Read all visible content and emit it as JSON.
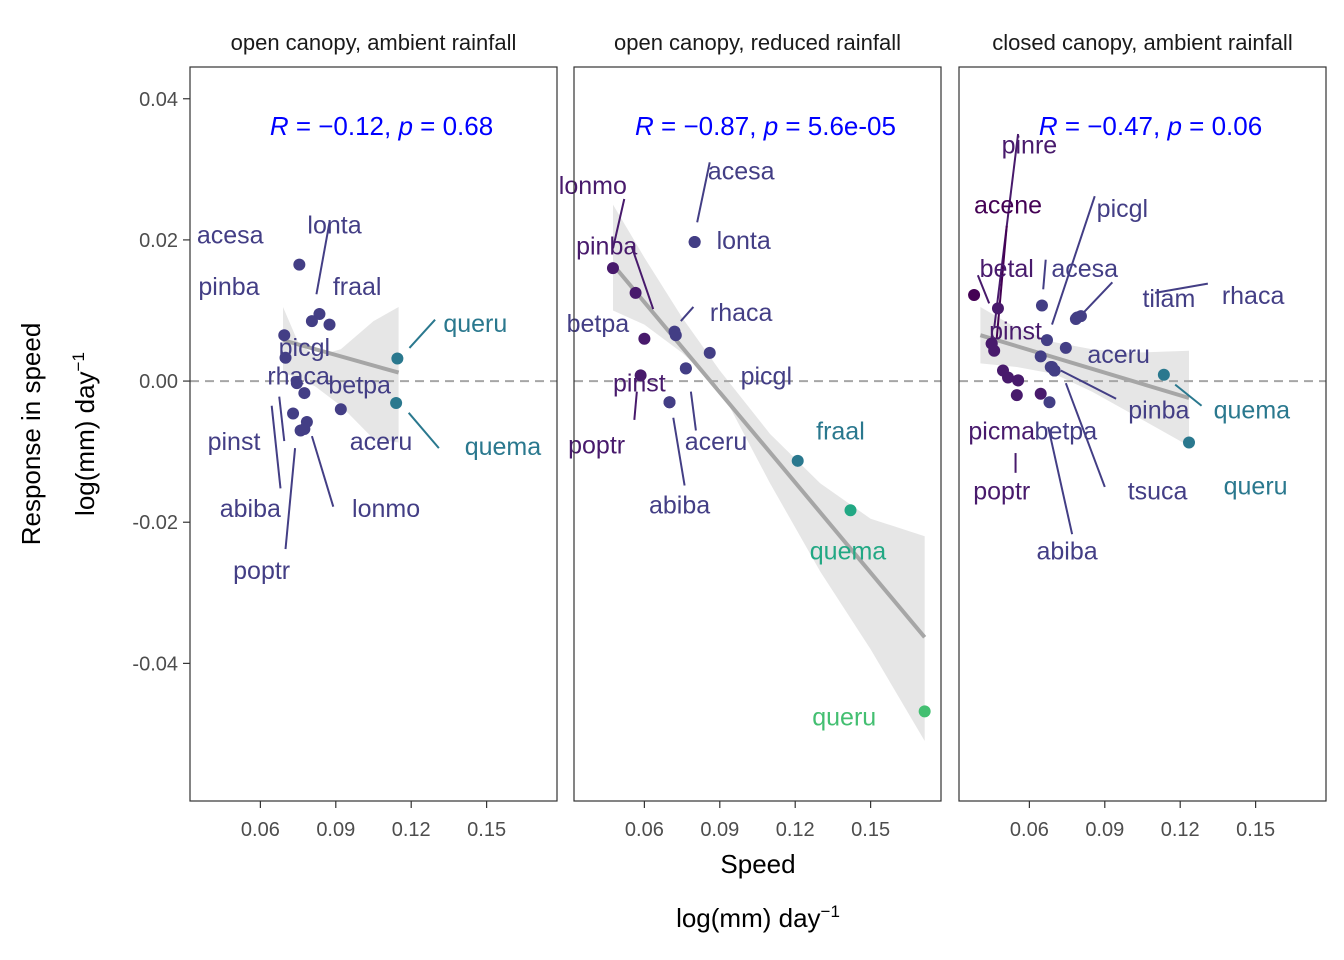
{
  "chart_data": {
    "type": "scatter",
    "y_axis": {
      "title_line1": "Response in speed",
      "title_line2_base": "log(mm) day",
      "title_line2_sup": "−1",
      "ylim": [
        -0.0595,
        0.0445
      ],
      "ticks": [
        0.04,
        0.02,
        0.0,
        -0.02,
        -0.04
      ],
      "tick_labels": [
        "0.04",
        "0.02",
        "0.00",
        "-0.02",
        "-0.04"
      ]
    },
    "x_axis": {
      "title": "Speed",
      "unit_base": "log(mm) day",
      "unit_sup": "−1",
      "xlim": [
        0.032,
        0.178
      ],
      "ticks": [
        0.06,
        0.09,
        0.12,
        0.15
      ],
      "tick_labels": [
        "0.06",
        "0.09",
        "0.12",
        "0.15"
      ]
    },
    "reference_line_y": 0,
    "grid": false,
    "panels": [
      {
        "strip": "open canopy, ambient rainfall",
        "stat": {
          "r": "−0.12",
          "p": "0.68"
        },
        "fit": {
          "x0": 0.069,
          "x1": 0.115,
          "y0": 0.0058,
          "y1": 0.0012,
          "ribbon_x": [
            0.069,
            0.075,
            0.082,
            0.092,
            0.105,
            0.115
          ],
          "ribbon_upper": [
            0.0105,
            0.0055,
            0.0035,
            0.0045,
            0.0085,
            0.0105
          ],
          "ribbon_lower": [
            0.0011,
            0.0005,
            -0.0008,
            -0.0035,
            -0.0082,
            -0.0087
          ]
        },
        "points": [
          {
            "name": "acesa",
            "x": 0.0755,
            "y": 0.0165,
            "color": "#433e85",
            "lx": 0.048,
            "ly": 0.0208,
            "anchor": "middle"
          },
          {
            "name": "lonta",
            "x": 0.0835,
            "y": 0.0095,
            "color": "#433e85",
            "lx": 0.0895,
            "ly": 0.0222,
            "anchor": "middle",
            "seg": [
              0.0875,
              0.0225,
              0.0823,
              0.0123
            ]
          },
          {
            "name": "fraal",
            "x": 0.0805,
            "y": 0.0085,
            "color": "#433e85",
            "lx": 0.0985,
            "ly": 0.0135,
            "anchor": "middle"
          },
          {
            "name": "",
            "x": 0.0875,
            "y": 0.008,
            "color": "#433e85"
          },
          {
            "name": "pinba",
            "x": 0.0695,
            "y": 0.0065,
            "color": "#433e85",
            "lx": 0.0475,
            "ly": 0.0135,
            "anchor": "middle"
          },
          {
            "name": "picgl",
            "x": 0.07,
            "y": 0.0033,
            "color": "#433e85",
            "lx": 0.0775,
            "ly": 0.0048,
            "anchor": "middle"
          },
          {
            "name": "rhaca",
            "x": 0.0745,
            "y": -0.0003,
            "color": "#433e85",
            "lx": 0.0752,
            "ly": 0.0008,
            "anchor": "middle"
          },
          {
            "name": "betpa",
            "x": 0.0775,
            "y": -0.0017,
            "color": "#433e85",
            "lx": 0.0995,
            "ly": -0.0005,
            "anchor": "middle"
          },
          {
            "name": "aceru",
            "x": 0.092,
            "y": -0.004,
            "color": "#433e85",
            "lx": 0.108,
            "ly": -0.0085,
            "anchor": "middle"
          },
          {
            "name": "pinst",
            "x": 0.073,
            "y": -0.0046,
            "color": "#433e85",
            "lx": 0.0495,
            "ly": -0.0085,
            "anchor": "middle",
            "seg": [
              0.0675,
              -0.0022,
              0.0695,
              -0.0085
            ]
          },
          {
            "name": "lonmo",
            "x": 0.0785,
            "y": -0.0058,
            "color": "#433e85",
            "lx": 0.11,
            "ly": -0.018,
            "anchor": "middle",
            "seg": [
              0.0805,
              -0.0078,
              0.089,
              -0.0178
            ]
          },
          {
            "name": "abiba",
            "x": 0.076,
            "y": -0.007,
            "color": "#433e85",
            "lx": 0.056,
            "ly": -0.018,
            "anchor": "middle",
            "seg": [
              0.0645,
              -0.0035,
              0.068,
              -0.0152
            ]
          },
          {
            "name": "poptr",
            "x": 0.0775,
            "y": -0.0068,
            "color": "#433e85",
            "lx": 0.0605,
            "ly": -0.0268,
            "anchor": "middle",
            "seg": [
              0.0738,
              -0.0095,
              0.07,
              -0.0238
            ]
          },
          {
            "name": "queru",
            "x": 0.1145,
            "y": 0.0032,
            "color": "#2a788e",
            "lx": 0.1455,
            "ly": 0.0082,
            "anchor": "middle",
            "seg": [
              0.1193,
              0.0047,
              0.1295,
              0.0087
            ]
          },
          {
            "name": "quema",
            "x": 0.114,
            "y": -0.0031,
            "color": "#2a788e",
            "lx": 0.1565,
            "ly": -0.0092,
            "anchor": "middle",
            "seg": [
              0.119,
              -0.0045,
              0.131,
              -0.0095
            ]
          }
        ]
      },
      {
        "strip": "open canopy, reduced rainfall",
        "stat": {
          "r": "−0.87",
          "p": "5.6e-05"
        },
        "fit": {
          "x0": 0.0475,
          "x1": 0.1715,
          "y0": 0.0165,
          "y1": -0.0363,
          "ribbon_x": [
            0.0475,
            0.06,
            0.075,
            0.09,
            0.11,
            0.13,
            0.15,
            0.1715
          ],
          "ribbon_upper": [
            0.025,
            0.0175,
            0.009,
            0.0015,
            -0.0075,
            -0.0145,
            -0.0195,
            -0.022
          ],
          "ribbon_lower": [
            0.01,
            0.008,
            0.004,
            -0.001,
            -0.0145,
            -0.027,
            -0.038,
            -0.051
          ]
        },
        "points": [
          {
            "name": "lonmo",
            "x": 0.0475,
            "y": 0.016,
            "color": "#481a6c",
            "lx": 0.0395,
            "ly": 0.0278,
            "anchor": "middle",
            "seg": [
              0.0475,
              0.0188,
              0.052,
              0.0258
            ]
          },
          {
            "name": "acesa",
            "x": 0.08,
            "y": 0.0197,
            "color": "#433e85",
            "lx": 0.0985,
            "ly": 0.0298,
            "anchor": "middle",
            "seg": [
              0.081,
              0.0225,
              0.086,
              0.031
            ]
          },
          {
            "name": "lonta",
            "x": 0.08,
            "y": 0.0197,
            "color": "#433e85",
            "lx": 0.0995,
            "ly": 0.02,
            "anchor": "middle"
          },
          {
            "name": "pinba",
            "x": 0.0565,
            "y": 0.0125,
            "color": "#481a6c",
            "lx": 0.045,
            "ly": 0.0192,
            "anchor": "middle",
            "seg": [
              0.0635,
              0.0102,
              0.055,
              0.019
            ]
          },
          {
            "name": "rhaca",
            "x": 0.072,
            "y": 0.007,
            "color": "#433e85",
            "lx": 0.0985,
            "ly": 0.0098,
            "anchor": "middle",
            "seg": [
              0.0745,
              0.0085,
              0.0795,
              0.0105
            ]
          },
          {
            "name": "betpa",
            "x": 0.0725,
            "y": 0.0065,
            "color": "#433e85",
            "lx": 0.0415,
            "ly": 0.0082,
            "anchor": "middle"
          },
          {
            "name": "",
            "x": 0.06,
            "y": 0.006,
            "color": "#481a6c"
          },
          {
            "name": "",
            "x": 0.086,
            "y": 0.004,
            "color": "#433e85"
          },
          {
            "name": "picgl",
            "x": 0.0765,
            "y": 0.0018,
            "color": "#433e85",
            "lx": 0.1085,
            "ly": 0.0008,
            "anchor": "middle"
          },
          {
            "name": "pinst",
            "x": 0.0585,
            "y": 0.0008,
            "color": "#481a6c",
            "lx": 0.058,
            "ly": -0.0002,
            "anchor": "middle"
          },
          {
            "name": "aceru",
            "x": 0.0765,
            "y": 0.0018,
            "color": "#433e85",
            "lx": 0.0885,
            "ly": -0.0085,
            "anchor": "middle",
            "seg": [
              0.0785,
              -0.0015,
              0.0805,
              -0.007
            ]
          },
          {
            "name": "poptr",
            "x": 0.07,
            "y": -0.003,
            "color": "#481a6c",
            "lx": 0.041,
            "ly": -0.009,
            "anchor": "middle",
            "seg": [
              0.057,
              -0.0015,
              0.056,
              -0.0055
            ]
          },
          {
            "name": "abiba",
            "x": 0.07,
            "y": -0.003,
            "color": "#433e85",
            "lx": 0.074,
            "ly": -0.0175,
            "anchor": "middle",
            "seg": [
              0.0715,
              -0.0052,
              0.076,
              -0.0148
            ]
          },
          {
            "name": "fraal",
            "x": 0.121,
            "y": -0.0113,
            "color": "#2a788e",
            "lx": 0.138,
            "ly": -0.007,
            "anchor": "middle"
          },
          {
            "name": "quema",
            "x": 0.142,
            "y": -0.0183,
            "color": "#22a884",
            "lx": 0.141,
            "ly": -0.024,
            "anchor": "middle"
          },
          {
            "name": "queru",
            "x": 0.1715,
            "y": -0.0468,
            "color": "#43bf71",
            "lx": 0.1395,
            "ly": -0.0475,
            "anchor": "middle"
          }
        ]
      },
      {
        "strip": "closed canopy, ambient rainfall",
        "stat": {
          "r": "−0.47",
          "p": "0.06"
        },
        "fit": {
          "x0": 0.0405,
          "x1": 0.1235,
          "y0": 0.0065,
          "y1": -0.0024,
          "ribbon_x": [
            0.0405,
            0.055,
            0.07,
            0.085,
            0.1,
            0.1235
          ],
          "ribbon_upper": [
            0.0105,
            0.0075,
            0.0055,
            0.0045,
            0.004,
            0.0043
          ],
          "ribbon_lower": [
            0.0025,
            0.002,
            0.001,
            -0.0015,
            -0.0045,
            -0.0092
          ]
        },
        "points": [
          {
            "name": "pinre",
            "x": 0.0475,
            "y": 0.0103,
            "color": "#481a6c",
            "lx": 0.06,
            "ly": 0.0335,
            "anchor": "middle",
            "seg": [
              0.046,
              0.0075,
              0.0555,
              0.035
            ]
          },
          {
            "name": "acene",
            "x": 0.038,
            "y": 0.0122,
            "color": "#440154",
            "lx": 0.0515,
            "ly": 0.025,
            "anchor": "middle",
            "seg": [
              0.047,
              0.006,
              0.051,
              0.022
            ]
          },
          {
            "name": "picgl",
            "x": 0.079,
            "y": 0.009,
            "color": "#433e85",
            "lx": 0.097,
            "ly": 0.0245,
            "anchor": "middle",
            "seg": [
              0.069,
              0.008,
              0.086,
              0.0262
            ]
          },
          {
            "name": "betal",
            "x": 0.045,
            "y": 0.0053,
            "color": "#481a6c",
            "lx": 0.051,
            "ly": 0.016,
            "anchor": "middle",
            "seg": [
              0.044,
              0.011,
              0.0395,
              0.015
            ]
          },
          {
            "name": "acesa",
            "x": 0.065,
            "y": 0.0107,
            "color": "#433e85",
            "lx": 0.082,
            "ly": 0.016,
            "anchor": "middle",
            "seg": [
              0.0655,
              0.013,
              0.0665,
              0.0172
            ]
          },
          {
            "name": "tilam",
            "x": 0.0785,
            "y": 0.0088,
            "color": "#433e85",
            "lx": 0.1155,
            "ly": 0.0118,
            "anchor": "middle",
            "seg": [
              0.081,
              0.0095,
              0.093,
              0.014
            ]
          },
          {
            "name": "rhaca",
            "x": 0.0805,
            "y": 0.0092,
            "color": "#433e85",
            "lx": 0.149,
            "ly": 0.0122,
            "anchor": "middle",
            "seg": [
              0.11,
              0.0125,
              0.131,
              0.0138
            ]
          },
          {
            "name": "pinst",
            "x": 0.045,
            "y": 0.0053,
            "color": "#481a6c",
            "lx": 0.0545,
            "ly": 0.0072,
            "anchor": "middle"
          },
          {
            "name": "",
            "x": 0.067,
            "y": 0.0058,
            "color": "#433e85"
          },
          {
            "name": "aceru",
            "x": 0.0745,
            "y": 0.0047,
            "color": "#433e85",
            "lx": 0.0955,
            "ly": 0.0038,
            "anchor": "middle"
          },
          {
            "name": "",
            "x": 0.046,
            "y": 0.0043,
            "color": "#481a6c"
          },
          {
            "name": "",
            "x": 0.0645,
            "y": 0.0035,
            "color": "#433e85"
          },
          {
            "name": "",
            "x": 0.0495,
            "y": 0.0015,
            "color": "#481a6c"
          },
          {
            "name": "",
            "x": 0.0685,
            "y": 0.002,
            "color": "#433e85"
          },
          {
            "name": "",
            "x": 0.07,
            "y": 0.0015,
            "color": "#433e85"
          },
          {
            "name": "",
            "x": 0.0515,
            "y": 0.0005,
            "color": "#481a6c"
          },
          {
            "name": "",
            "x": 0.0555,
            "y": 0.0001,
            "color": "#481a6c"
          },
          {
            "name": "",
            "x": 0.0645,
            "y": -0.0018,
            "color": "#481a6c"
          },
          {
            "name": "quema",
            "x": 0.1135,
            "y": 0.0009,
            "color": "#2a788e",
            "lx": 0.1485,
            "ly": -0.004,
            "anchor": "middle",
            "seg": [
              0.118,
              -0.0005,
              0.1285,
              -0.0035
            ]
          },
          {
            "name": "pinba",
            "x": 0.069,
            "y": 0.002,
            "color": "#433e85",
            "lx": 0.1115,
            "ly": -0.004,
            "anchor": "middle",
            "seg": [
              0.0725,
              0.0015,
              0.0945,
              -0.0025
            ]
          },
          {
            "name": "picma",
            "x": 0.0555,
            "y": 0.0001,
            "color": "#481a6c",
            "lx": 0.049,
            "ly": -0.007,
            "anchor": "middle"
          },
          {
            "name": "betpa",
            "x": 0.07,
            "y": 0.0015,
            "color": "#433e85",
            "lx": 0.0745,
            "ly": -0.007,
            "anchor": "middle"
          },
          {
            "name": "tsuca",
            "x": 0.07,
            "y": 0.0015,
            "color": "#433e85",
            "lx": 0.111,
            "ly": -0.0155,
            "anchor": "middle",
            "seg": [
              0.0745,
              -0.0003,
              0.09,
              -0.015
            ]
          },
          {
            "name": "poptr",
            "x": 0.055,
            "y": -0.002,
            "color": "#481a6c",
            "lx": 0.049,
            "ly": -0.0155,
            "anchor": "middle",
            "seg": [
              0.0545,
              -0.0102,
              0.0545,
              -0.013
            ]
          },
          {
            "name": "abiba",
            "x": 0.068,
            "y": -0.003,
            "color": "#433e85",
            "lx": 0.075,
            "ly": -0.024,
            "anchor": "middle",
            "seg": [
              0.0675,
              -0.0065,
              0.077,
              -0.0217
            ]
          },
          {
            "name": "queru",
            "x": 0.1235,
            "y": -0.0087,
            "color": "#2a788e",
            "lx": 0.15,
            "ly": -0.0148,
            "anchor": "middle"
          }
        ]
      }
    ]
  }
}
